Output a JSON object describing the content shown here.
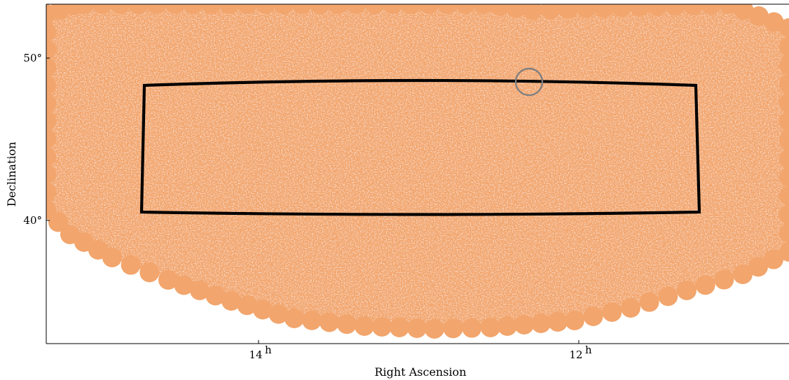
{
  "chart_data": {
    "type": "scatter",
    "projection": "sky map (right ascension vs declination)",
    "title": "",
    "xlabel": "Right Ascension",
    "ylabel": "Declination",
    "xticks": [
      {
        "value": 14,
        "label": "14",
        "sup": "h"
      },
      {
        "value": 12,
        "label": "12",
        "sup": "h"
      }
    ],
    "yticks": [
      {
        "value": 50,
        "label": "50°"
      },
      {
        "value": 40,
        "label": "40°"
      }
    ],
    "grid": true,
    "xlim_hours": [
      15.33,
      10.67
    ],
    "ylim_deg": [
      33.5,
      54.0
    ],
    "survey_coverage": {
      "shown": true,
      "color": "#f0a46c"
    },
    "selected_region": {
      "ra_hours": [
        14.7,
        11.3
      ],
      "dec_deg": [
        40.5,
        48.3
      ],
      "outline_color": "#000000"
    },
    "marked_circle": {
      "ra_hours": 11.97,
      "dec_deg": 48.35,
      "color": "#808080"
    },
    "series": [
      {
        "color": "#000000",
        "marker": "dot"
      },
      {
        "color": "#0000ff",
        "marker": "dot"
      }
    ]
  },
  "colors": {
    "grid": "#8a8a8a",
    "axes": "#000000",
    "coverage_base": "#f2a56c",
    "pointing_outside": "#000000",
    "pointing_inside": "#0010ff"
  }
}
